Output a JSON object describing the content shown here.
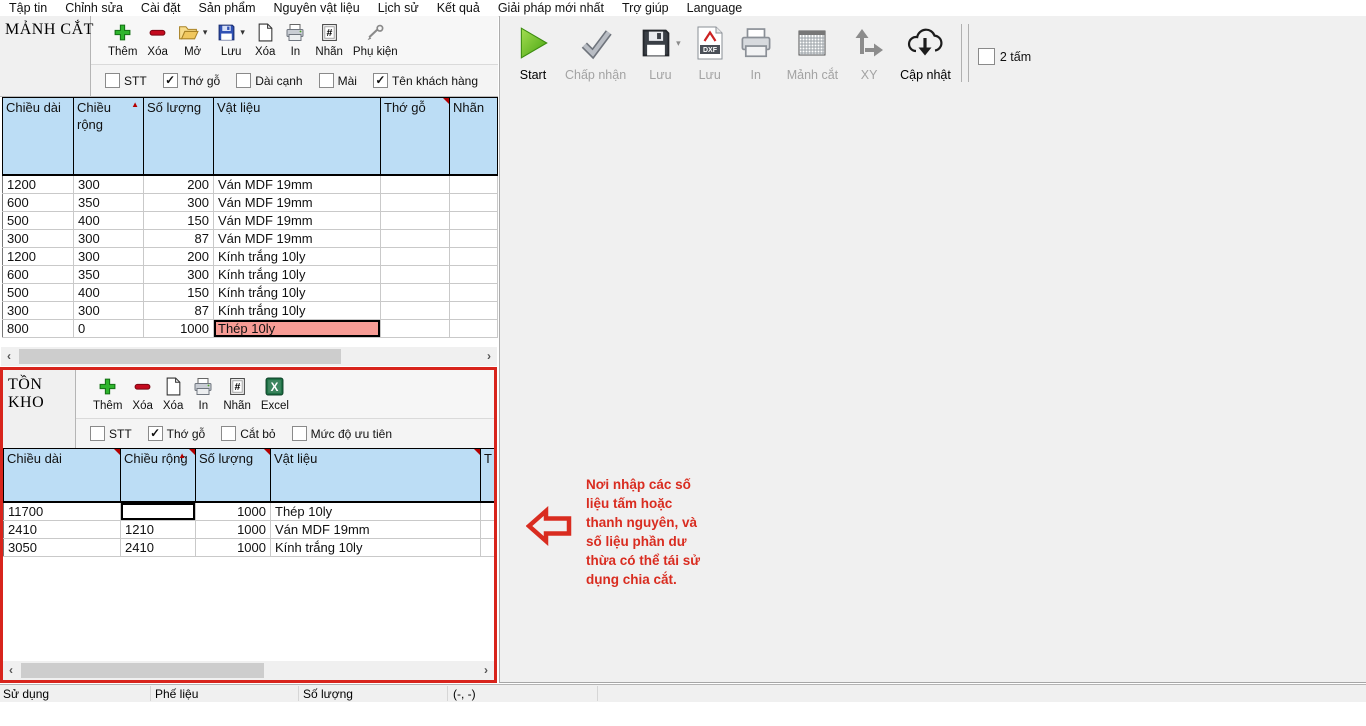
{
  "menu": {
    "items": [
      "Tập tin",
      "Chỉnh sửa",
      "Cài đặt",
      "Sản phẩm",
      "Nguyên vật liệu",
      "Lịch sử",
      "Kết quả",
      "Giải pháp mới nhất",
      "Trợ giúp",
      "Language"
    ]
  },
  "cut_panel": {
    "title": "MẢNH CẮT",
    "buttons": {
      "add": "Thêm",
      "delete": "Xóa",
      "open": "Mở",
      "save": "Lưu",
      "clear": "Xóa",
      "print": "In",
      "label": "Nhãn",
      "accessory": "Phụ kiện"
    },
    "checkboxes": [
      {
        "label": "STT",
        "checked": false
      },
      {
        "label": "Thớ gỗ",
        "checked": true
      },
      {
        "label": "Dài cạnh",
        "checked": false
      },
      {
        "label": "Mài",
        "checked": false
      },
      {
        "label": "Tên khách hàng",
        "checked": true
      }
    ]
  },
  "cut_table": {
    "headers": [
      "Chiều dài",
      "Chiều rộng",
      "Số lượng",
      "Vật liệu",
      "Thớ gỗ",
      "Nhãn"
    ],
    "sorted_by": "Chiều rộng",
    "rows": [
      [
        "1200",
        "300",
        "200",
        "Ván MDF 19mm",
        "",
        ""
      ],
      [
        "600",
        "350",
        "300",
        "Ván MDF 19mm",
        "",
        ""
      ],
      [
        "500",
        "400",
        "150",
        "Ván MDF 19mm",
        "",
        ""
      ],
      [
        "300",
        "300",
        "87",
        "Ván MDF 19mm",
        "",
        ""
      ],
      [
        "1200",
        "300",
        "200",
        "Kính trắng 10ly",
        "",
        ""
      ],
      [
        "600",
        "350",
        "300",
        "Kính trắng 10ly",
        "",
        ""
      ],
      [
        "500",
        "400",
        "150",
        "Kính trắng 10ly",
        "",
        ""
      ],
      [
        "300",
        "300",
        "87",
        "Kính trắng 10ly",
        "",
        ""
      ],
      [
        "800",
        "0",
        "1000",
        "Thép 10ly",
        "",
        ""
      ]
    ],
    "selected": {
      "row": 8,
      "col": 3,
      "fill": true
    }
  },
  "stock_panel": {
    "title": "TỒN KHO",
    "buttons": {
      "add": "Thêm",
      "delete": "Xóa",
      "clear": "Xóa",
      "print": "In",
      "label": "Nhãn",
      "excel": "Excel"
    },
    "checkboxes": [
      {
        "label": "STT",
        "checked": false
      },
      {
        "label": "Thớ gỗ",
        "checked": true
      },
      {
        "label": "Cắt bỏ",
        "checked": false
      },
      {
        "label": "Mức độ ưu tiên",
        "checked": false
      }
    ]
  },
  "stock_table": {
    "headers": [
      "Chiều dài",
      "Chiều rộng",
      "Số lượng",
      "Vật liệu",
      "T"
    ],
    "sorted_by": "Chiều rộng",
    "rows": [
      [
        "11700",
        "",
        "1000",
        "Thép 10ly",
        ""
      ],
      [
        "2410",
        "1210",
        "1000",
        "Ván MDF 19mm",
        ""
      ],
      [
        "3050",
        "2410",
        "1000",
        "Kính trắng 10ly",
        ""
      ]
    ],
    "selected": {
      "row": 0,
      "col": 1,
      "fill": false
    }
  },
  "run_toolbar": {
    "buttons": [
      {
        "label": "Start",
        "enabled": true
      },
      {
        "label": "Chấp nhận",
        "enabled": false
      },
      {
        "label": "Lưu",
        "enabled": false
      },
      {
        "label": "Lưu",
        "enabled": false
      },
      {
        "label": "In",
        "enabled": false
      },
      {
        "label": "Mảnh cắt",
        "enabled": false
      },
      {
        "label": "XY",
        "enabled": false
      },
      {
        "label": "Cập nhật",
        "enabled": true
      }
    ],
    "dxf_text": "DXF",
    "checkbox": {
      "label": "2 tấm",
      "checked": false
    }
  },
  "annotation": {
    "text": "Nơi nhập các số\nliệu tấm hoặc\nthanh nguyên, và\nsố liệu phần dư\nthừa có thể tái sử\ndụng chia cắt."
  },
  "status_bar": {
    "items": [
      "Sử dụng",
      "Phế liệu",
      "Số lượng",
      "(-, -)"
    ]
  },
  "colors": {
    "header_blue": "#bcddf5",
    "selection_fill": "#f79c95",
    "annotation_red": "#d92c20",
    "section_border_red": "#d8241c",
    "start_green": "#55b411"
  }
}
